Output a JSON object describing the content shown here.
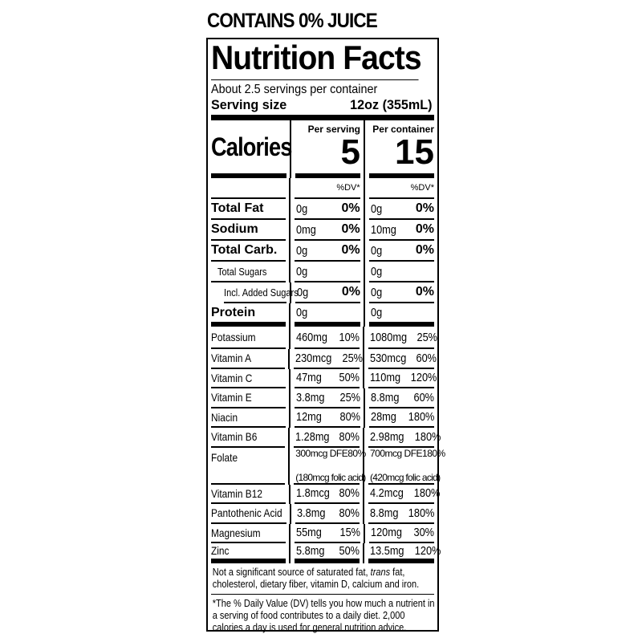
{
  "header": "CONTAINS 0% JUICE",
  "title": "Nutrition Facts",
  "servings": "About 2.5 servings per container",
  "serving_size_label": "Serving size",
  "serving_size": "12oz (355mL)",
  "calories": {
    "label": "Calories",
    "per_serving_label": "Per serving",
    "per_serving": "5",
    "per_container_label": "Per container",
    "per_container": "15",
    "dv": "%DV*"
  },
  "macros": [
    {
      "name": "Total Fat",
      "s": "0g",
      "sdv": "0%",
      "c": "0g",
      "cdv": "0%",
      "style": "bold"
    },
    {
      "name": "Sodium",
      "s": "0mg",
      "sdv": "0%",
      "c": "10mg",
      "cdv": "0%",
      "style": "bold"
    },
    {
      "name": "Total Carb.",
      "s": "0g",
      "sdv": "0%",
      "c": "0g",
      "cdv": "0%",
      "style": "bold"
    },
    {
      "name": "Total Sugars",
      "s": "0g",
      "sdv": "",
      "c": "0g",
      "cdv": "",
      "style": "sub"
    },
    {
      "name": "Incl. Added Sugars",
      "s": "0g",
      "sdv": "0%",
      "c": "0g",
      "cdv": "0%",
      "style": "sub2"
    },
    {
      "name": "Protein",
      "s": "0g",
      "sdv": "",
      "c": "0g",
      "cdv": "",
      "style": "bold"
    }
  ],
  "micros": [
    {
      "name": "Potassium",
      "s": "460mg",
      "sdv": "10%",
      "c": "1080mg",
      "cdv": "25%"
    },
    {
      "name": "Vitamin A",
      "s": "230mcg",
      "sdv": "25%",
      "c": "530mcg",
      "cdv": "60%"
    },
    {
      "name": "Vitamin C",
      "s": "47mg",
      "sdv": "50%",
      "c": "110mg",
      "cdv": "120%"
    },
    {
      "name": "Vitamin E",
      "s": "3.8mg",
      "sdv": "25%",
      "c": "8.8mg",
      "cdv": "60%"
    },
    {
      "name": "Niacin",
      "s": "12mg",
      "sdv": "80%",
      "c": "28mg",
      "cdv": "180%"
    },
    {
      "name": "Vitamin B6",
      "s": "1.28mg",
      "sdv": "80%",
      "c": "2.98mg",
      "cdv": "180%"
    },
    {
      "name": "Folate",
      "s": "300mcg DFE",
      "sdv": "80%",
      "s2": "(180mcg folic acid)",
      "c": "700mcg DFE",
      "cdv": "180%",
      "c2": "(420mcg folic acid)"
    },
    {
      "name": "Vitamin B12",
      "s": "1.8mcg",
      "sdv": "80%",
      "c": "4.2mcg",
      "cdv": "180%"
    },
    {
      "name": "Pantothenic Acid",
      "s": "3.8mg",
      "sdv": "80%",
      "c": "8.8mg",
      "cdv": "180%"
    },
    {
      "name": "Magnesium",
      "s": "55mg",
      "sdv": "15%",
      "c": "120mg",
      "cdv": "30%"
    },
    {
      "name": "Zinc",
      "s": "5.8mg",
      "sdv": "50%",
      "c": "13.5mg",
      "cdv": "120%"
    }
  ],
  "footnote1_a": "Not a significant source of saturated fat, ",
  "footnote1_i": "trans",
  "footnote1_b": " fat, cholesterol, dietary fiber, vitamin D, calcium and iron.",
  "footnote2": "*The % Daily Value (DV) tells you how much a nutrient in a serving of food contributes to a daily diet. 2,000 calories a day is used for general nutrition advice."
}
